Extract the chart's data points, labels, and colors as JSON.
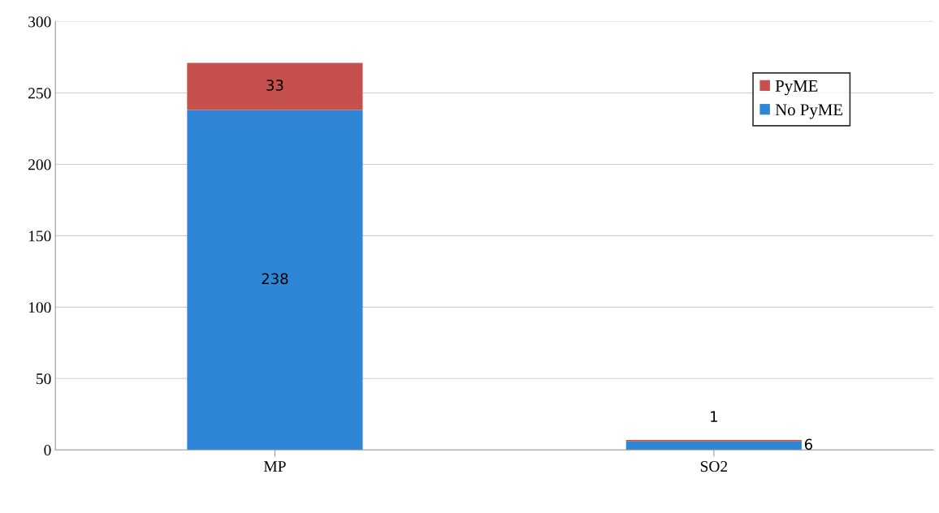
{
  "chart_data": {
    "type": "bar",
    "stacked": true,
    "categories": [
      "MP",
      "SO2"
    ],
    "series": [
      {
        "name": "No PyME",
        "color": "#2f86d6",
        "values": [
          238,
          6
        ]
      },
      {
        "name": "PyME",
        "color": "#c5504e",
        "values": [
          33,
          1
        ]
      }
    ],
    "ylim": [
      0,
      300
    ],
    "yticks": [
      0,
      50,
      100,
      150,
      200,
      250,
      300
    ],
    "grid": "y",
    "legend": "top right",
    "data_labels": true
  }
}
